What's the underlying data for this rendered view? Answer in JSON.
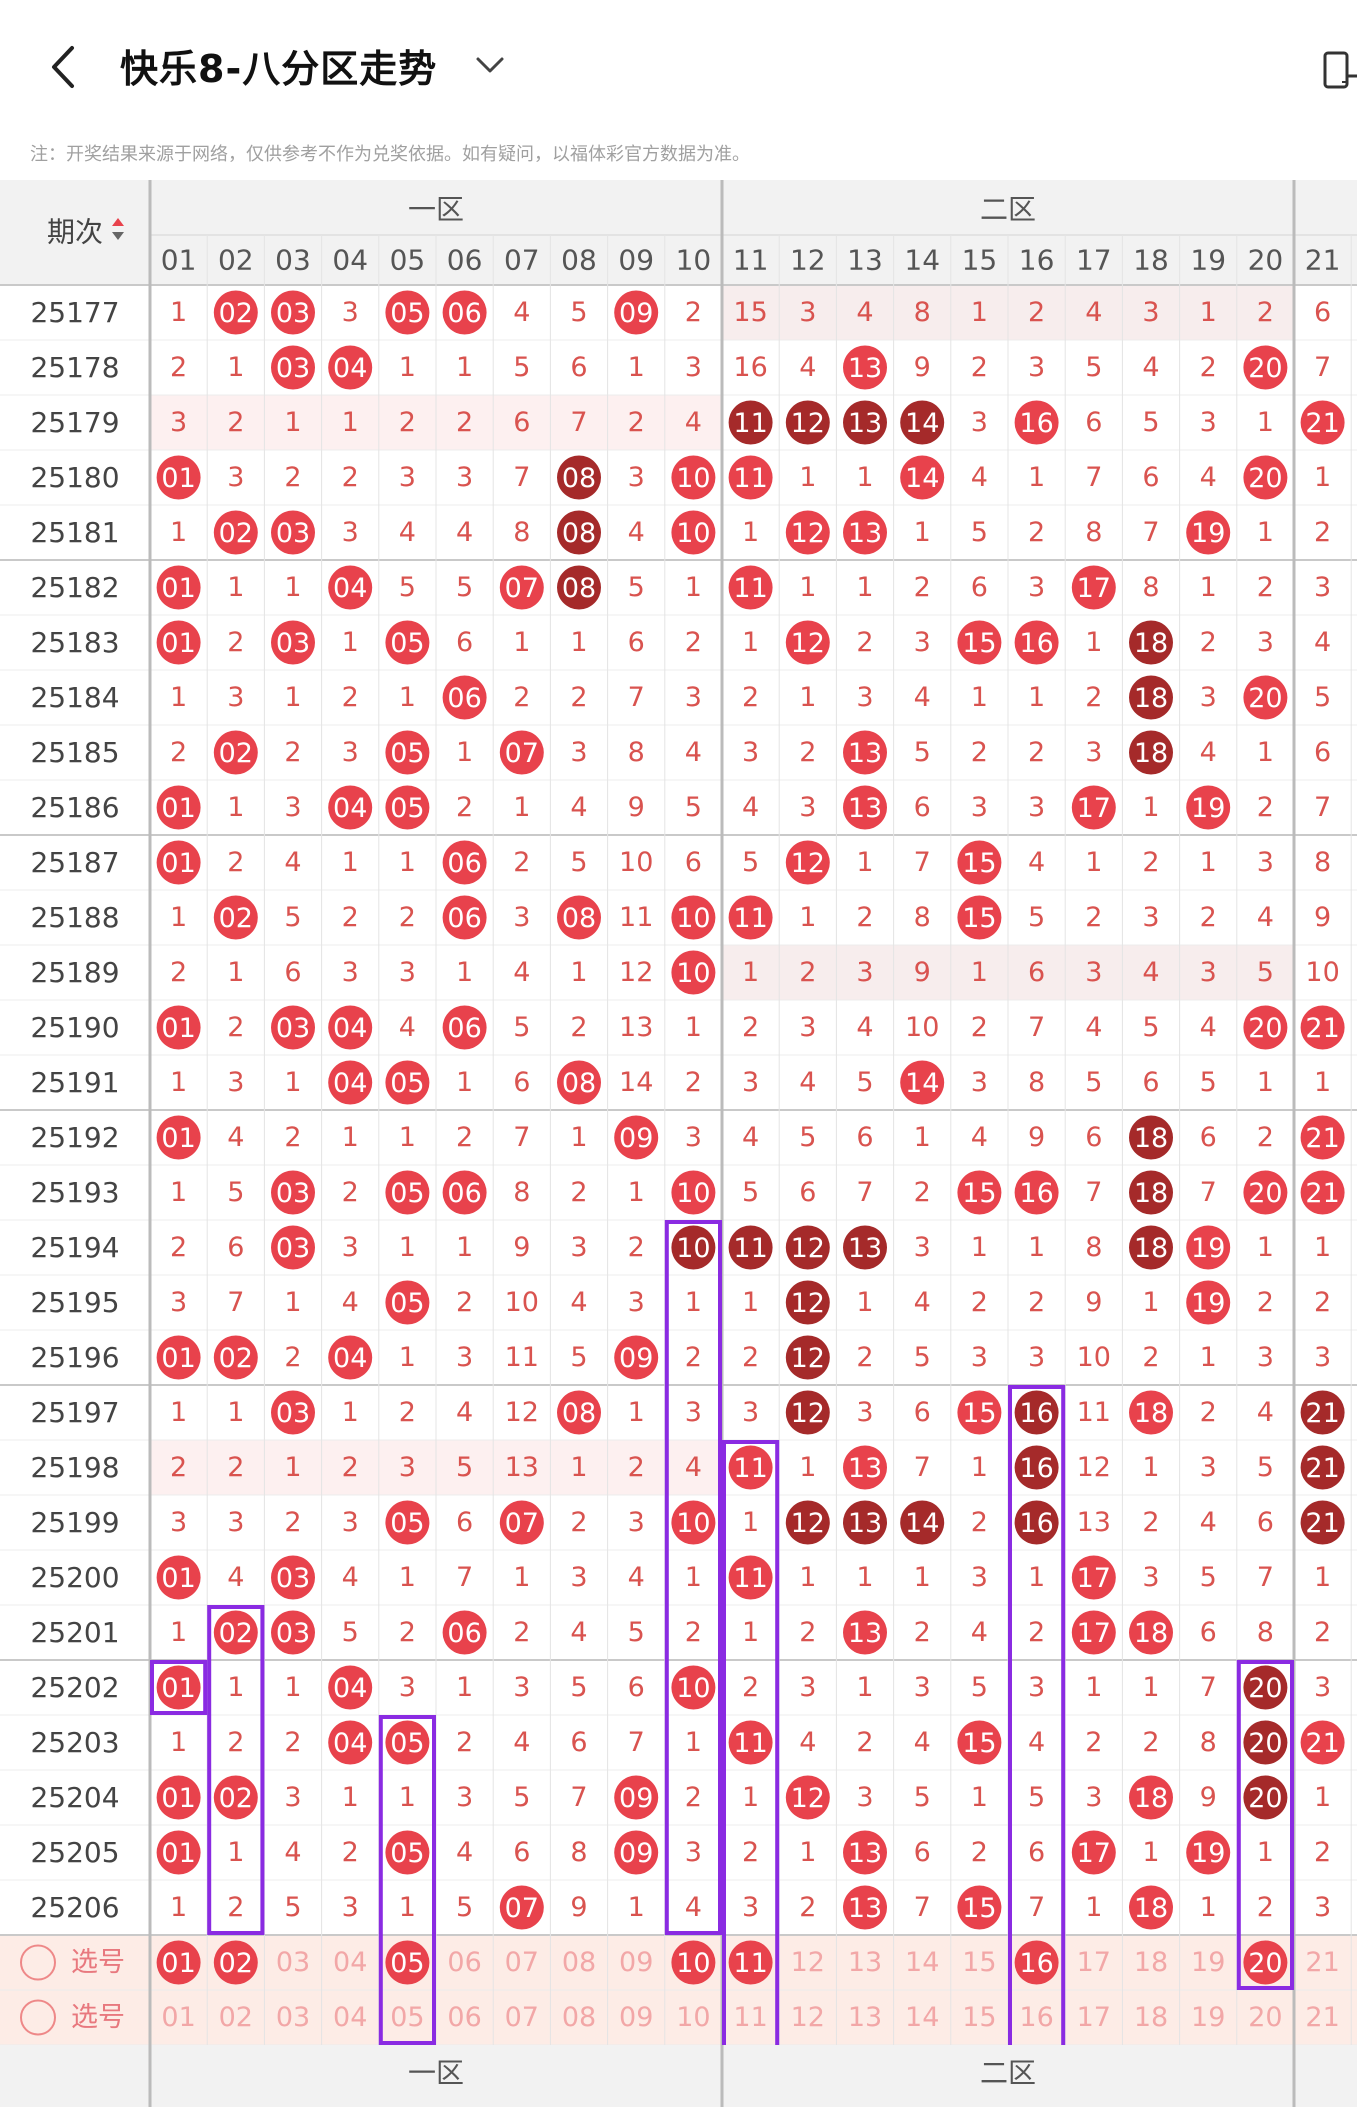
{
  "header": {
    "title": "快乐8-八分区走势",
    "back_icon": "chevron-left-icon",
    "dropdown_icon": "chevron-down-icon",
    "tablet_icon": "tablet-icon"
  },
  "notice": "注：开奖结果来源于网络，仅供参考不作为兑奖依据。如有疑问，以福体彩官方数据为准。",
  "table": {
    "period_header": "期次",
    "sort_icon": "sort-up-down-icon",
    "zone_labels": [
      "一区",
      "二区"
    ],
    "columns": [
      "01",
      "02",
      "03",
      "04",
      "05",
      "06",
      "07",
      "08",
      "09",
      "10",
      "11",
      "12",
      "13",
      "14",
      "15",
      "16",
      "17",
      "18",
      "19",
      "20",
      "21"
    ],
    "select_label": "选号",
    "rows": [
      {
        "period": "25177",
        "cells": [
          1,
          "02",
          "03",
          3,
          "05",
          "06",
          4,
          5,
          "09",
          2,
          15,
          3,
          4,
          8,
          1,
          2,
          4,
          3,
          1,
          2,
          6
        ]
      },
      {
        "period": "25178",
        "cells": [
          2,
          1,
          "03",
          "04",
          1,
          1,
          5,
          6,
          1,
          3,
          16,
          4,
          "13",
          9,
          2,
          3,
          5,
          4,
          2,
          "20",
          7
        ]
      },
      {
        "period": "25179",
        "cells": [
          3,
          2,
          1,
          1,
          2,
          2,
          6,
          7,
          2,
          4,
          "11",
          "12",
          "13",
          "14",
          3,
          "16",
          6,
          5,
          3,
          1,
          "21"
        ]
      },
      {
        "period": "25180",
        "cells": [
          "01",
          3,
          2,
          2,
          3,
          3,
          7,
          "08",
          3,
          "10",
          "11",
          1,
          1,
          "14",
          4,
          1,
          7,
          6,
          4,
          "20",
          1
        ]
      },
      {
        "period": "25181",
        "cells": [
          1,
          "02",
          "03",
          3,
          4,
          4,
          8,
          "08",
          4,
          "10",
          1,
          "12",
          "13",
          1,
          5,
          2,
          8,
          7,
          "19",
          1,
          2
        ]
      },
      {
        "period": "25182",
        "cells": [
          "01",
          1,
          1,
          "04",
          5,
          5,
          "07",
          "08",
          5,
          1,
          "11",
          1,
          1,
          2,
          6,
          3,
          "17",
          8,
          1,
          2,
          3
        ]
      },
      {
        "period": "25183",
        "cells": [
          "01",
          2,
          "03",
          1,
          "05",
          6,
          1,
          1,
          6,
          2,
          1,
          "12",
          2,
          3,
          "15",
          "16",
          1,
          "18",
          2,
          3,
          4
        ]
      },
      {
        "period": "25184",
        "cells": [
          1,
          3,
          1,
          2,
          1,
          "06",
          2,
          2,
          7,
          3,
          2,
          1,
          3,
          4,
          1,
          1,
          2,
          "18",
          3,
          "20",
          5
        ]
      },
      {
        "period": "25185",
        "cells": [
          2,
          "02",
          2,
          3,
          "05",
          1,
          "07",
          3,
          8,
          4,
          3,
          2,
          "13",
          5,
          2,
          2,
          3,
          "18",
          4,
          1,
          6
        ]
      },
      {
        "period": "25186",
        "cells": [
          "01",
          1,
          3,
          "04",
          "05",
          2,
          1,
          4,
          9,
          5,
          4,
          3,
          "13",
          6,
          3,
          3,
          "17",
          1,
          "19",
          2,
          7
        ]
      },
      {
        "period": "25187",
        "cells": [
          "01",
          2,
          4,
          1,
          1,
          "06",
          2,
          5,
          10,
          6,
          5,
          "12",
          1,
          7,
          "15",
          4,
          1,
          2,
          1,
          3,
          8
        ]
      },
      {
        "period": "25188",
        "cells": [
          1,
          "02",
          5,
          2,
          2,
          "06",
          3,
          "08",
          11,
          "10",
          "11",
          1,
          2,
          8,
          "15",
          5,
          2,
          3,
          2,
          4,
          9
        ]
      },
      {
        "period": "25189",
        "cells": [
          2,
          1,
          6,
          3,
          3,
          1,
          4,
          1,
          12,
          "10",
          1,
          2,
          3,
          9,
          1,
          6,
          3,
          4,
          3,
          5,
          10
        ]
      },
      {
        "period": "25190",
        "cells": [
          "01",
          2,
          "03",
          "04",
          4,
          "06",
          5,
          2,
          13,
          1,
          2,
          3,
          4,
          10,
          2,
          7,
          4,
          5,
          4,
          "20",
          "21"
        ]
      },
      {
        "period": "25191",
        "cells": [
          1,
          3,
          1,
          "04",
          "05",
          1,
          6,
          "08",
          14,
          2,
          3,
          4,
          5,
          "14",
          3,
          8,
          5,
          6,
          5,
          1,
          1
        ]
      },
      {
        "period": "25192",
        "cells": [
          "01",
          4,
          2,
          1,
          1,
          2,
          7,
          1,
          "09",
          3,
          4,
          5,
          6,
          1,
          4,
          9,
          6,
          "18",
          6,
          2,
          "21"
        ]
      },
      {
        "period": "25193",
        "cells": [
          1,
          5,
          "03",
          2,
          "05",
          "06",
          8,
          2,
          1,
          "10",
          5,
          6,
          7,
          2,
          "15",
          "16",
          7,
          "18",
          7,
          "20",
          "21"
        ]
      },
      {
        "period": "25194",
        "cells": [
          2,
          6,
          "03",
          3,
          1,
          1,
          9,
          3,
          2,
          "10",
          "11",
          "12",
          "13",
          3,
          1,
          1,
          8,
          "18",
          "19",
          1,
          1
        ]
      },
      {
        "period": "25195",
        "cells": [
          3,
          7,
          1,
          4,
          "05",
          2,
          10,
          4,
          3,
          1,
          1,
          "12",
          1,
          4,
          2,
          2,
          9,
          1,
          "19",
          2,
          2
        ]
      },
      {
        "period": "25196",
        "cells": [
          "01",
          "02",
          2,
          "04",
          1,
          3,
          11,
          5,
          "09",
          2,
          2,
          "12",
          2,
          5,
          3,
          3,
          10,
          2,
          1,
          3,
          3
        ]
      },
      {
        "period": "25197",
        "cells": [
          1,
          1,
          "03",
          1,
          2,
          4,
          12,
          "08",
          1,
          3,
          3,
          "12",
          3,
          6,
          "15",
          "16",
          11,
          "18",
          2,
          4,
          "21"
        ]
      },
      {
        "period": "25198",
        "cells": [
          2,
          2,
          1,
          2,
          3,
          5,
          13,
          1,
          2,
          4,
          "11",
          1,
          "13",
          7,
          1,
          "16",
          12,
          1,
          3,
          5,
          "21"
        ]
      },
      {
        "period": "25199",
        "cells": [
          3,
          3,
          2,
          3,
          "05",
          6,
          "07",
          2,
          3,
          "10",
          1,
          "12",
          "13",
          "14",
          2,
          "16",
          13,
          2,
          4,
          6,
          "21"
        ]
      },
      {
        "period": "25200",
        "cells": [
          "01",
          4,
          "03",
          4,
          1,
          7,
          1,
          3,
          4,
          1,
          "11",
          1,
          1,
          1,
          3,
          1,
          "17",
          3,
          5,
          7,
          1
        ]
      },
      {
        "period": "25201",
        "cells": [
          1,
          "02",
          "03",
          5,
          2,
          "06",
          2,
          4,
          5,
          2,
          1,
          2,
          "13",
          2,
          4,
          2,
          "17",
          "18",
          6,
          8,
          2
        ]
      },
      {
        "period": "25202",
        "cells": [
          "01",
          1,
          1,
          "04",
          3,
          1,
          3,
          5,
          6,
          "10",
          2,
          3,
          1,
          3,
          5,
          3,
          1,
          1,
          7,
          "20",
          3
        ]
      },
      {
        "period": "25203",
        "cells": [
          1,
          2,
          2,
          "04",
          "05",
          2,
          4,
          6,
          7,
          1,
          "11",
          4,
          2,
          4,
          "15",
          4,
          2,
          2,
          8,
          "20",
          "21"
        ]
      },
      {
        "period": "25204",
        "cells": [
          "01",
          "02",
          3,
          1,
          1,
          3,
          5,
          7,
          "09",
          2,
          1,
          "12",
          3,
          5,
          1,
          5,
          3,
          "18",
          9,
          "20",
          1
        ]
      },
      {
        "period": "25205",
        "cells": [
          "01",
          1,
          4,
          2,
          "05",
          4,
          6,
          8,
          "09",
          3,
          2,
          1,
          "13",
          6,
          2,
          6,
          "17",
          1,
          "19",
          1,
          2
        ]
      },
      {
        "period": "25206",
        "cells": [
          1,
          2,
          5,
          3,
          1,
          5,
          "07",
          9,
          1,
          4,
          3,
          2,
          "13",
          7,
          "15",
          7,
          1,
          "18",
          1,
          2,
          3
        ]
      }
    ],
    "select_rows": [
      {
        "label": "选号",
        "selected": [
          "01",
          "02",
          "05",
          "10",
          "11",
          "16",
          "20"
        ]
      },
      {
        "label": "选号",
        "selected": []
      }
    ]
  },
  "colors": {
    "hit": "#e8424c",
    "hit_dark": "#a52a2a",
    "zone_highlight": "#8a2be2",
    "miss_text": "#d9534f",
    "header_bg": "#f2f2f2"
  }
}
